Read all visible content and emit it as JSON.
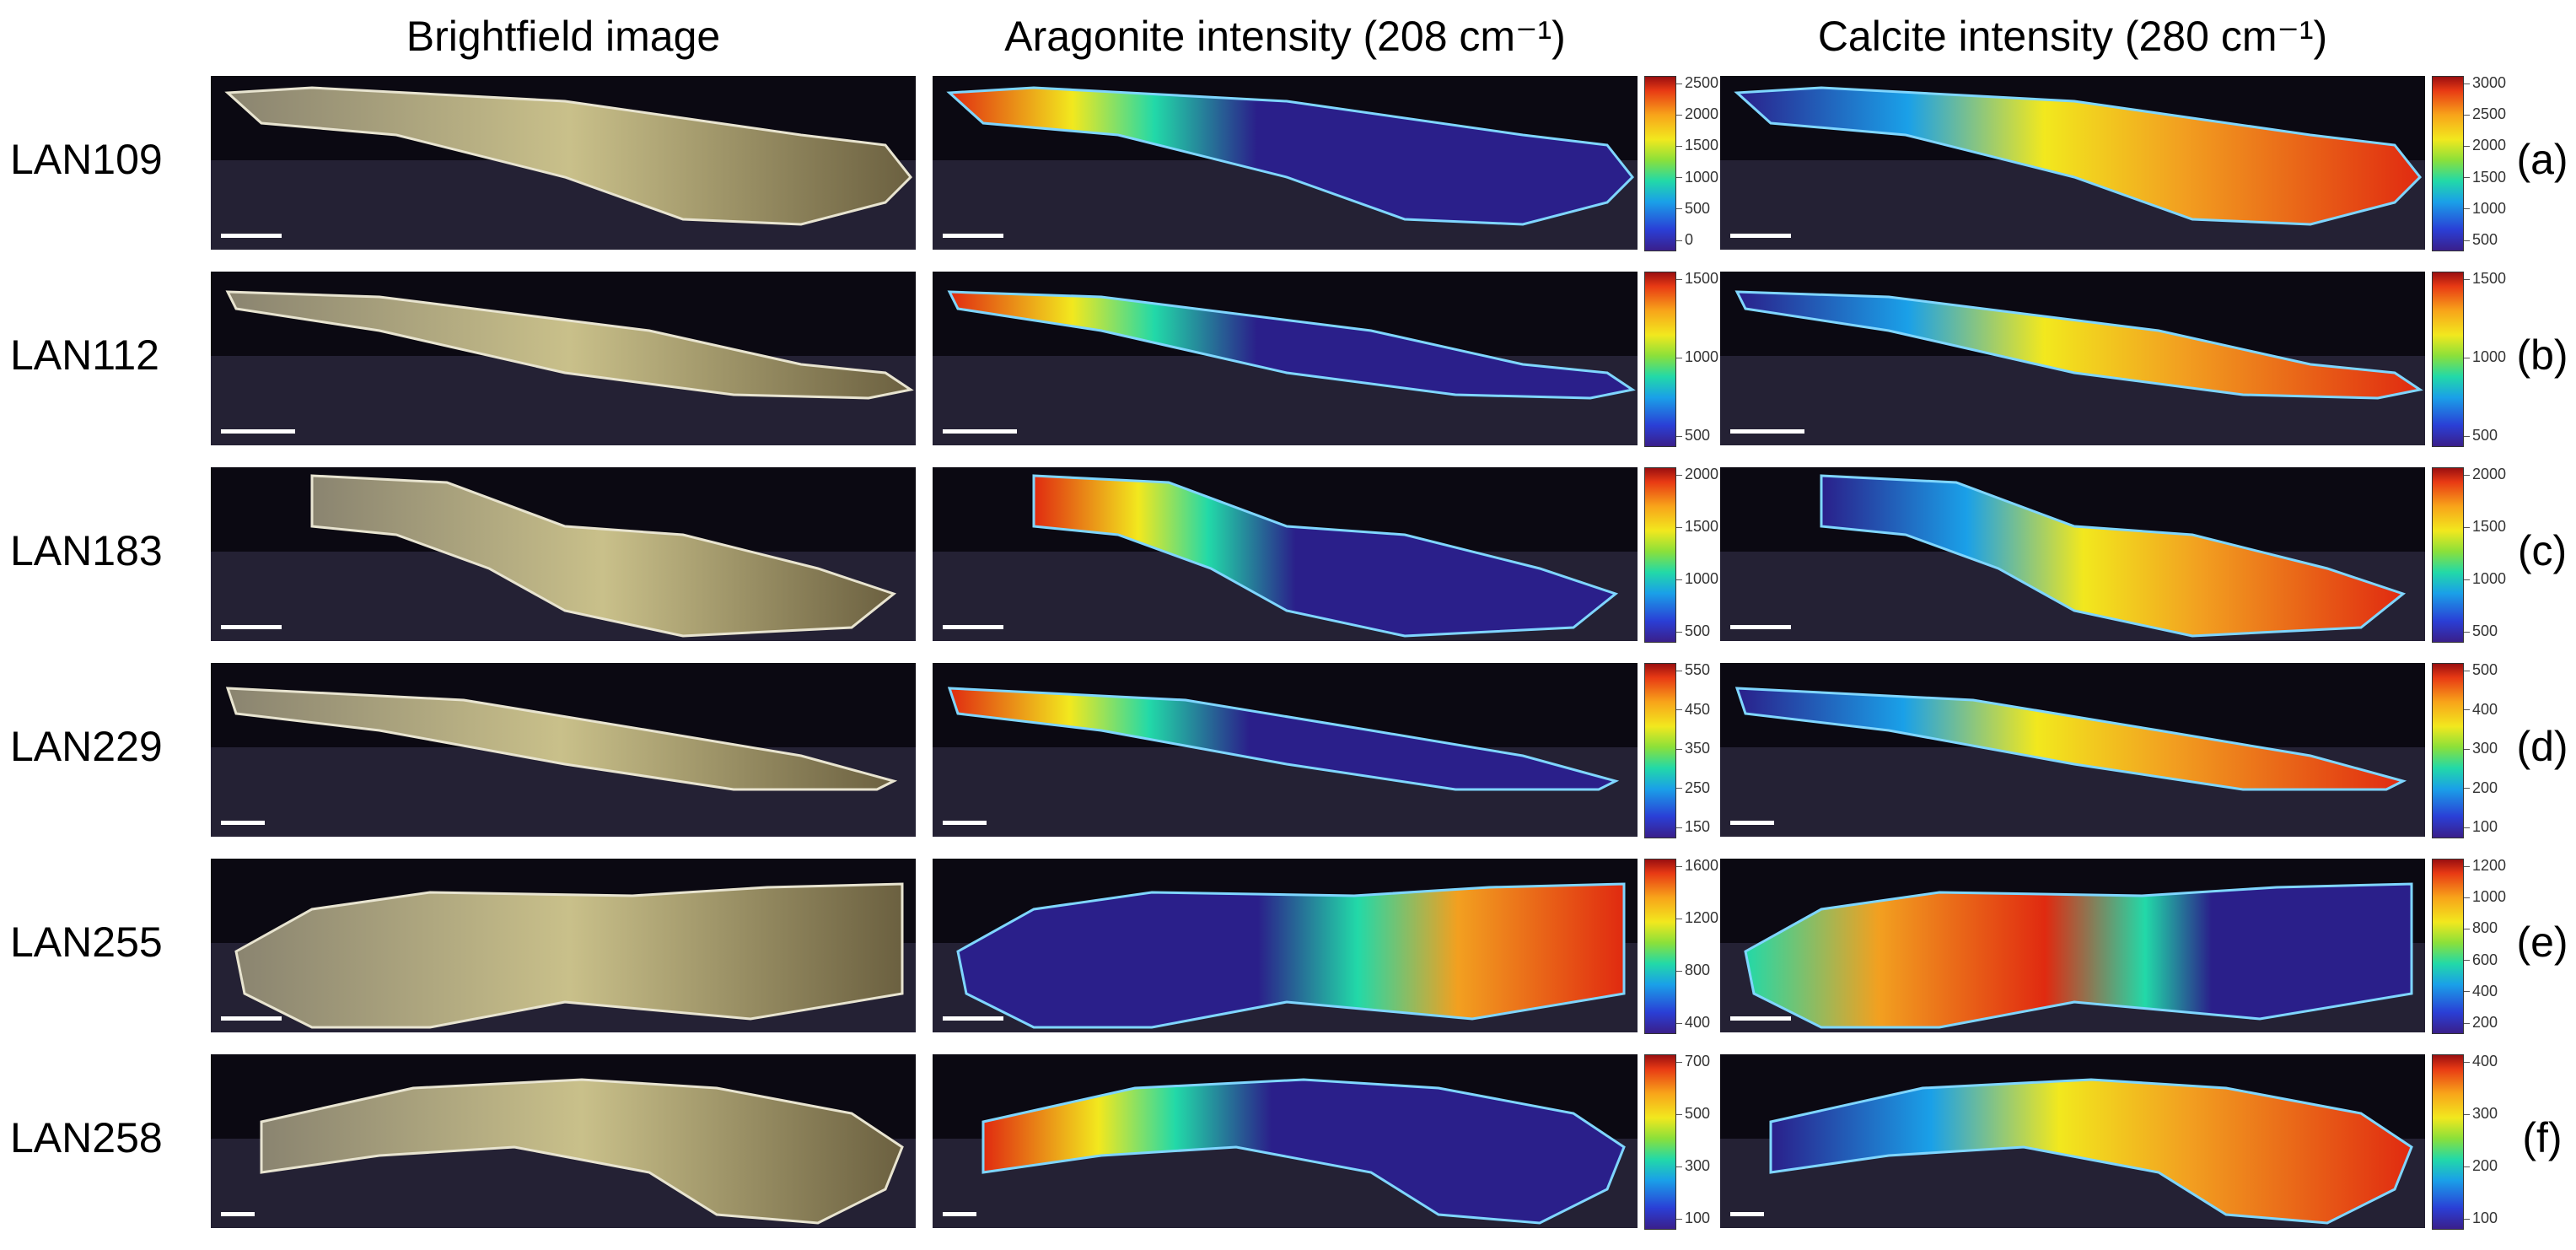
{
  "column_titles": {
    "brightfield": "Brightfield image",
    "aragonite": "Aragonite intensity (208 cm⁻¹)",
    "calcite": "Calcite intensity (280 cm⁻¹)"
  },
  "rows": [
    {
      "label": "LAN109",
      "letter": "(a)",
      "aragonite_ticks": [
        "2500",
        "2000",
        "1500",
        "1000",
        "500",
        "0"
      ],
      "calcite_ticks": [
        "3000",
        "2500",
        "2000",
        "1500",
        "1000",
        "500"
      ]
    },
    {
      "label": "LAN112",
      "letter": "(b)",
      "aragonite_ticks": [
        "1500",
        "1000",
        "500"
      ],
      "calcite_ticks": [
        "1500",
        "1000",
        "500"
      ]
    },
    {
      "label": "LAN183",
      "letter": "(c)",
      "aragonite_ticks": [
        "2000",
        "1500",
        "1000",
        "500"
      ],
      "calcite_ticks": [
        "2000",
        "1500",
        "1000",
        "500"
      ]
    },
    {
      "label": "LAN229",
      "letter": "(d)",
      "aragonite_ticks": [
        "550",
        "450",
        "350",
        "250",
        "150"
      ],
      "calcite_ticks": [
        "500",
        "400",
        "300",
        "200",
        "100"
      ]
    },
    {
      "label": "LAN255",
      "letter": "(e)",
      "aragonite_ticks": [
        "1600",
        "1200",
        "800",
        "400"
      ],
      "calcite_ticks": [
        "1200",
        "1000",
        "800",
        "600",
        "400",
        "200"
      ]
    },
    {
      "label": "LAN258",
      "letter": "(f)",
      "aragonite_ticks": [
        "700",
        "500",
        "300",
        "100"
      ],
      "calcite_ticks": [
        "400",
        "300",
        "200",
        "100"
      ]
    }
  ],
  "colors": {
    "map_low": "#2a1f8a",
    "map_mid": "#22d9a8",
    "map_high": "#e02a10",
    "shell": "#c9c08a"
  }
}
